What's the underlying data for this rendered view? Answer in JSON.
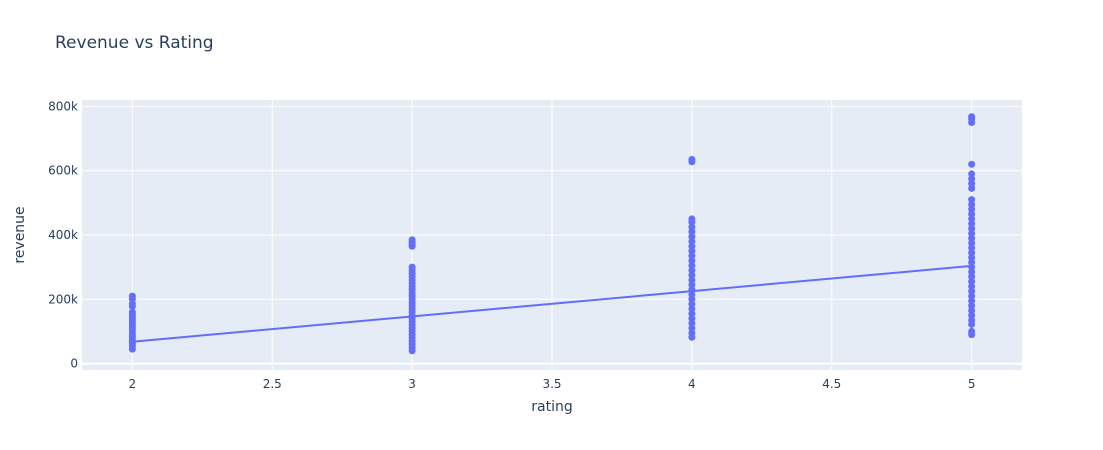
{
  "chart_data": {
    "type": "scatter",
    "title": "Revenue vs Rating",
    "xlabel": "rating",
    "ylabel": "revenue",
    "xlim": [
      1.82,
      5.18
    ],
    "ylim": [
      -20000,
      820000
    ],
    "x_ticks": [
      2,
      2.5,
      3,
      3.5,
      4,
      4.5,
      5
    ],
    "x_tick_labels": [
      "2",
      "2.5",
      "3",
      "3.5",
      "4",
      "4.5",
      "5"
    ],
    "y_ticks": [
      0,
      200000,
      400000,
      600000,
      800000
    ],
    "y_tick_labels": [
      "0",
      "200k",
      "400k",
      "600k",
      "800k"
    ],
    "grid": true,
    "colors": {
      "marker": "#636efa",
      "plot_bg": "#e5ecf6",
      "grid": "#ffffff",
      "text": "#2a3f5f"
    },
    "series": [
      {
        "mode": "markers",
        "groups": [
          {
            "x": 2,
            "values": [
              45000,
              55000,
              62000,
              70000,
              78000,
              85000,
              92000,
              100000,
              108000,
              115000,
              122000,
              130000,
              138000,
              145000,
              152000,
              160000,
              178000,
              186000,
              200000,
              210000
            ]
          },
          {
            "x": 3,
            "values": [
              40000,
              50000,
              60000,
              70000,
              80000,
              90000,
              100000,
              110000,
              120000,
              130000,
              140000,
              150000,
              160000,
              170000,
              180000,
              190000,
              200000,
              210000,
              220000,
              230000,
              240000,
              250000,
              260000,
              270000,
              280000,
              290000,
              300000,
              365000,
              372000,
              378000,
              385000
            ]
          },
          {
            "x": 4,
            "values": [
              82000,
              95000,
              110000,
              125000,
              140000,
              155000,
              170000,
              185000,
              200000,
              215000,
              230000,
              245000,
              260000,
              275000,
              290000,
              305000,
              320000,
              335000,
              350000,
              365000,
              380000,
              395000,
              410000,
              425000,
              440000,
              450000,
              628000,
              635000
            ]
          },
          {
            "x": 5,
            "values": [
              90000,
              100000,
              122000,
              135000,
              150000,
              165000,
              180000,
              195000,
              210000,
              225000,
              240000,
              255000,
              270000,
              285000,
              300000,
              315000,
              330000,
              345000,
              360000,
              375000,
              390000,
              405000,
              420000,
              435000,
              450000,
              465000,
              480000,
              495000,
              510000,
              545000,
              560000,
              575000,
              590000,
              620000,
              750000,
              760000,
              768000
            ]
          }
        ]
      },
      {
        "mode": "line",
        "x": [
          2,
          5
        ],
        "y": [
          68000,
          304000
        ]
      }
    ]
  }
}
